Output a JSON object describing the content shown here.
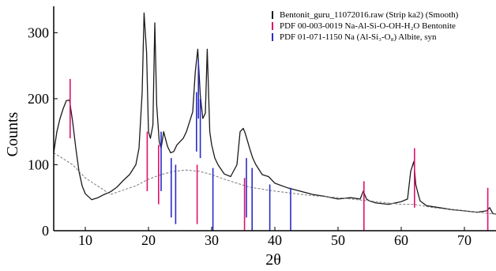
{
  "chart_data": {
    "type": "line",
    "xlabel": "2θ",
    "ylabel": "Counts",
    "xlim": [
      5,
      75
    ],
    "ylim": [
      0,
      340
    ],
    "x_ticks": [
      "10",
      "20",
      "30",
      "40",
      "50",
      "60",
      "70"
    ],
    "y_ticks": [
      "0",
      "100",
      "200",
      "300"
    ],
    "grid": false,
    "legend_position": "top-right",
    "colors": {
      "measured": "#1a1a1a",
      "background": "#7a7a7a",
      "bentonite": "#e0106a",
      "albite": "#2b2bc8"
    },
    "series": [
      {
        "name": "Bentonit_guru_11072016.raw (Strip ka2) (Smooth)",
        "x": [
          5,
          5.5,
          6,
          6.5,
          7,
          7.5,
          8,
          8.5,
          9,
          9.5,
          10,
          11,
          12,
          13,
          14,
          15,
          16,
          17,
          18,
          18.5,
          19,
          19.3,
          19.7,
          20,
          20.3,
          20.7,
          21,
          21.3,
          21.7,
          22,
          22.4,
          23,
          23.5,
          24,
          24.5,
          25,
          25.5,
          26,
          26.5,
          27,
          27.4,
          27.8,
          28.2,
          28.6,
          29,
          29.3,
          29.7,
          30,
          30.5,
          31,
          32,
          33,
          34,
          34.5,
          35,
          35.3,
          35.7,
          36,
          36.5,
          37,
          38,
          39,
          40,
          42,
          44,
          46,
          48,
          50,
          52,
          53.5,
          54,
          54.5,
          55,
          56,
          58,
          60,
          61,
          61.5,
          62,
          62.3,
          62.7,
          63,
          64,
          66,
          68,
          70,
          72,
          73.5,
          74,
          74.5,
          75
        ],
        "y": [
          118,
          150,
          170,
          185,
          197,
          198,
          165,
          125,
          90,
          68,
          56,
          47,
          50,
          55,
          59,
          66,
          76,
          85,
          100,
          125,
          210,
          330,
          270,
          150,
          140,
          160,
          315,
          190,
          135,
          125,
          150,
          128,
          118,
          120,
          130,
          135,
          140,
          150,
          165,
          180,
          240,
          275,
          205,
          170,
          178,
          275,
          150,
          130,
          110,
          100,
          86,
          82,
          100,
          150,
          155,
          148,
          135,
          125,
          110,
          100,
          85,
          82,
          72,
          65,
          60,
          55,
          52,
          48,
          50,
          48,
          60,
          48,
          45,
          42,
          40,
          44,
          48,
          90,
          105,
          70,
          55,
          45,
          38,
          35,
          32,
          30,
          28,
          30,
          35,
          26,
          25
        ]
      },
      {
        "name": "",
        "x": [
          5,
          8,
          10,
          14,
          18,
          20,
          22,
          24,
          26,
          28,
          30,
          32,
          34,
          36,
          40,
          45,
          50,
          55,
          60,
          62,
          65,
          70,
          75
        ],
        "y": [
          118,
          100,
          80,
          55,
          68,
          78,
          85,
          90,
          92,
          90,
          85,
          78,
          72,
          66,
          60,
          54,
          50,
          45,
          40,
          40,
          35,
          30,
          25
        ]
      }
    ],
    "reference_lines": [
      {
        "name": "PDF 00-003-0019 Na-Al-Si-O-OH-H₂O Bentonite",
        "x": [
          7.6,
          19.8,
          21.6,
          27.7,
          35.2,
          54.1,
          62.1,
          73.7
        ],
        "height": [
          230,
          150,
          130,
          100,
          80,
          75,
          125,
          65
        ]
      },
      {
        "name": "PDF 01-071-1150 Na (Al-Si₃-O₈) Albite, syn",
        "x": [
          22.0,
          23.6,
          24.3,
          27.6,
          27.9,
          28.2,
          30.2,
          35.5,
          36.4,
          39.2,
          42.5
        ],
        "height": [
          150,
          110,
          100,
          210,
          260,
          200,
          95,
          110,
          95,
          70,
          65
        ]
      }
    ]
  }
}
